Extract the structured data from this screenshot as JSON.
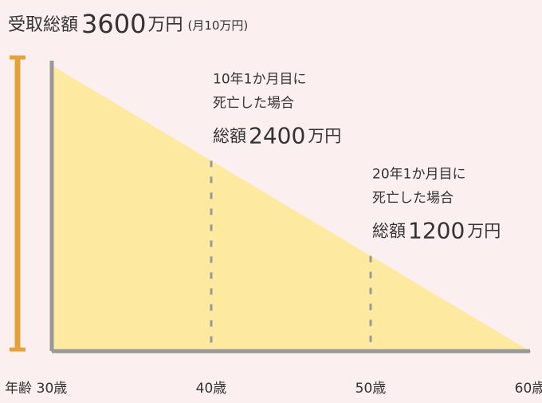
{
  "chart_data": {
    "type": "area",
    "title": {
      "lead": "受取総額",
      "value": 3600,
      "unit": "万円",
      "note": "(月10万円)"
    },
    "x": [
      30,
      40,
      50,
      60
    ],
    "values": [
      3600,
      2400,
      1200,
      0
    ],
    "color": "#fde9a0",
    "xlim": [
      30,
      60
    ],
    "ylim": [
      0,
      3600
    ],
    "xticks": [
      {
        "value": 30,
        "label": "30歳"
      },
      {
        "value": 40,
        "label": "40歳"
      },
      {
        "value": 50,
        "label": "50歳"
      },
      {
        "value": 60,
        "label": "60歳"
      }
    ],
    "xlabel": "年齢",
    "annotations": [
      {
        "x": 40,
        "lines": [
          "10年1か月目に",
          "死亡した場合"
        ],
        "lead": "総額",
        "value": 2400,
        "unit": "万円"
      },
      {
        "x": 50,
        "lines": [
          "20年1か月目に",
          "死亡した場合"
        ],
        "lead": "総額",
        "value": 1200,
        "unit": "万円"
      }
    ]
  }
}
